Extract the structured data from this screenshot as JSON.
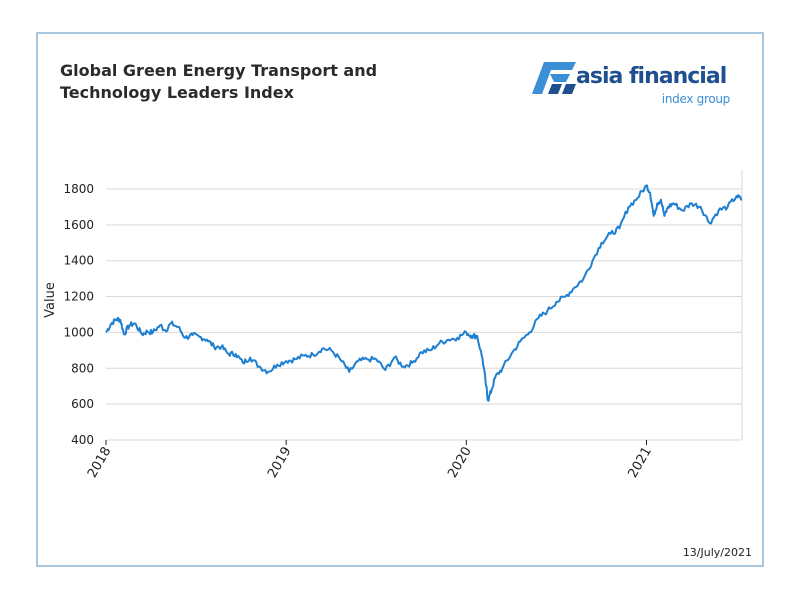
{
  "title_line1": "Global Green Energy Transport and",
  "title_line2": "Technology Leaders Index",
  "logo": {
    "brand": "asia financial",
    "sub": "index group"
  },
  "date_stamp": "13/July/2021",
  "colors": {
    "line": "#1f7fd0",
    "grid": "#d9d9d9",
    "frame": "#a9c8e0",
    "brand_dark": "#1f4f8f",
    "brand_light": "#3a8fd6"
  },
  "chart_data": {
    "type": "line",
    "title": "Global Green Energy Transport and Technology Leaders Index",
    "xlabel": "",
    "ylabel": "Value",
    "ylim": [
      400,
      1850
    ],
    "yticks": [
      400,
      600,
      800,
      1000,
      1200,
      1400,
      1600,
      1800
    ],
    "xlim": [
      2018.0,
      2021.53
    ],
    "xticks": [
      {
        "value": 2018.0,
        "label": "2018"
      },
      {
        "value": 2019.0,
        "label": "2019"
      },
      {
        "value": 2020.0,
        "label": "2020"
      },
      {
        "value": 2021.0,
        "label": "2021"
      }
    ],
    "grid": true,
    "series": [
      {
        "x": [
          2018.0,
          2018.03,
          2018.06,
          2018.08,
          2018.1,
          2018.13,
          2018.16,
          2018.2,
          2018.23,
          2018.26,
          2018.3,
          2018.33,
          2018.36,
          2018.4,
          2018.44,
          2018.48,
          2018.52,
          2018.56,
          2018.6,
          2018.64,
          2018.68,
          2018.72,
          2018.76,
          2018.8,
          2018.85,
          2018.9,
          2018.95,
          2019.0,
          2019.05,
          2019.1,
          2019.15,
          2019.2,
          2019.25,
          2019.3,
          2019.35,
          2019.4,
          2019.45,
          2019.5,
          2019.55,
          2019.6,
          2019.65,
          2019.7,
          2019.75,
          2019.8,
          2019.85,
          2019.9,
          2019.95,
          2020.0,
          2020.03,
          2020.06,
          2020.09,
          2020.11,
          2020.12,
          2020.14,
          2020.16,
          2020.2,
          2020.25,
          2020.3,
          2020.35,
          2020.4,
          2020.45,
          2020.5,
          2020.55,
          2020.6,
          2020.65,
          2020.7,
          2020.75,
          2020.8,
          2020.85,
          2020.9,
          2020.95,
          2021.0,
          2021.02,
          2021.04,
          2021.06,
          2021.08,
          2021.1,
          2021.12,
          2021.15,
          2021.2,
          2021.25,
          2021.3,
          2021.35,
          2021.4,
          2021.45,
          2021.5,
          2021.53
        ],
        "y": [
          1000,
          1050,
          1075,
          1070,
          990,
          1040,
          1050,
          990,
          1005,
          1000,
          1040,
          1010,
          1050,
          1030,
          970,
          985,
          975,
          960,
          920,
          920,
          880,
          880,
          830,
          860,
          810,
          780,
          820,
          840,
          850,
          870,
          875,
          910,
          900,
          850,
          780,
          840,
          850,
          850,
          790,
          860,
          810,
          830,
          890,
          900,
          940,
          960,
          970,
          1000,
          980,
          980,
          850,
          700,
          620,
          680,
          750,
          800,
          880,
          950,
          1000,
          1080,
          1120,
          1170,
          1200,
          1250,
          1300,
          1400,
          1500,
          1550,
          1580,
          1700,
          1750,
          1820,
          1780,
          1650,
          1720,
          1740,
          1650,
          1700,
          1720,
          1680,
          1720,
          1700,
          1610,
          1680,
          1700,
          1760,
          1740
        ]
      }
    ]
  }
}
